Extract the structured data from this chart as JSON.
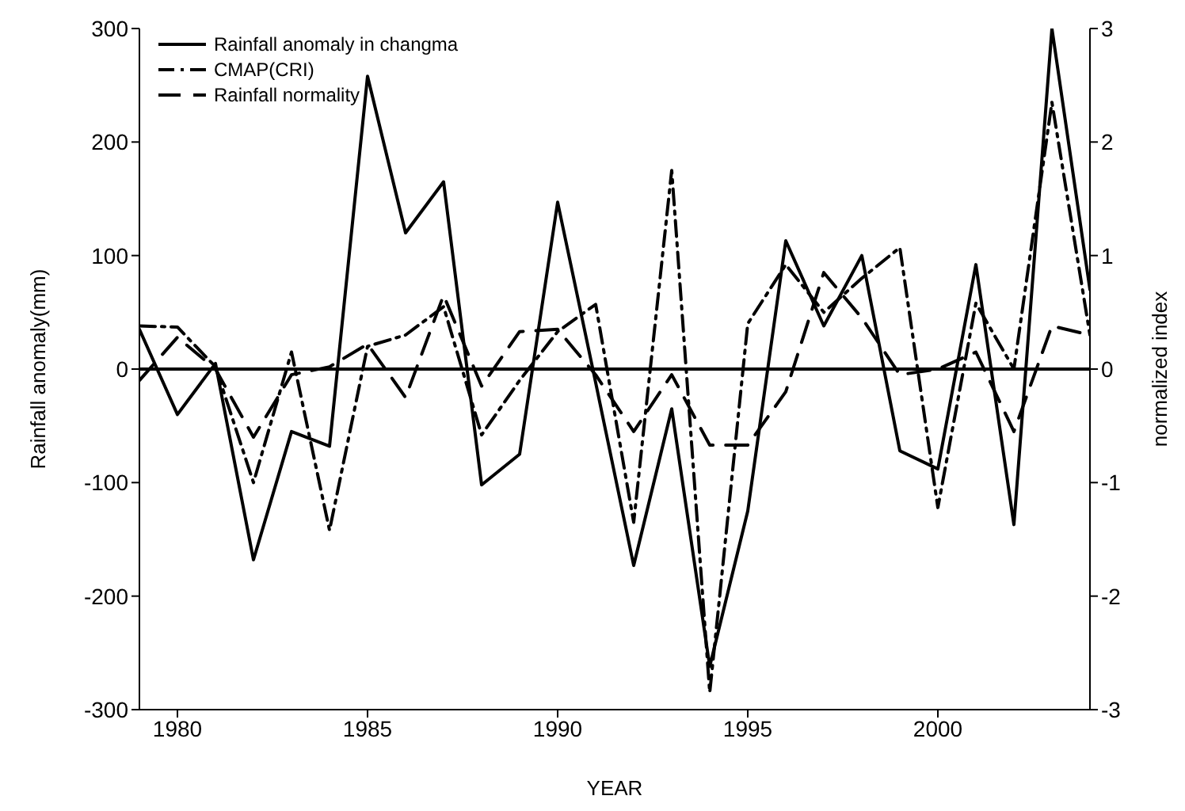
{
  "chart_data": {
    "type": "line",
    "xlabel": "YEAR",
    "ylabel": "Rainfall anomaly(mm)",
    "y2label": "normalized index",
    "x": [
      1979,
      1980,
      1981,
      1982,
      1983,
      1984,
      1985,
      1986,
      1987,
      1988,
      1989,
      1990,
      1991,
      1992,
      1993,
      1994,
      1995,
      1996,
      1997,
      1998,
      1999,
      2000,
      2001,
      2002,
      2003,
      2004
    ],
    "series": [
      {
        "name": "Rainfall anomaly in changma",
        "color": "#000000",
        "line_style": "solid",
        "values": [
          35,
          -40,
          5,
          -168,
          -55,
          -68,
          258,
          120,
          165,
          -102,
          -75,
          147,
          -12,
          -173,
          -35,
          -262,
          -125,
          113,
          38,
          100,
          -72,
          -88,
          92,
          -137,
          300,
          70
        ]
      },
      {
        "name": "CMAP(CRI)",
        "color": "#000000",
        "line_style": "dashdot",
        "axis": "y2",
        "values": [
          0.38,
          0.37,
          0.02,
          -1.0,
          0.15,
          -1.42,
          0.2,
          0.3,
          0.55,
          -0.58,
          -0.1,
          0.33,
          0.57,
          -1.35,
          1.75,
          -2.85,
          0.4,
          0.92,
          0.5,
          0.8,
          1.07,
          -1.22,
          0.58,
          0.0,
          2.35,
          0.3
        ]
      },
      {
        "name": "Rainfall normality",
        "color": "#000000",
        "line_style": "dashed",
        "axis": "y2",
        "values": [
          -0.1,
          0.28,
          0.0,
          -0.6,
          -0.05,
          0.02,
          0.22,
          -0.25,
          0.65,
          -0.15,
          0.33,
          0.35,
          -0.05,
          -0.55,
          -0.05,
          -0.67,
          -0.67,
          -0.2,
          0.85,
          0.45,
          -0.05,
          0.0,
          0.15,
          -0.55,
          0.38,
          0.3
        ]
      }
    ],
    "xlim": [
      1979,
      2004
    ],
    "xticks": [
      1980,
      1985,
      1990,
      1995,
      2000
    ],
    "ylim": [
      -300,
      300
    ],
    "yticks": [
      -300,
      -200,
      -100,
      0,
      100,
      200,
      300
    ],
    "y2lim": [
      -3,
      3
    ],
    "y2ticks": [
      -3,
      -2,
      -1,
      0,
      1,
      2,
      3
    ],
    "ref_lines": [
      {
        "axis": "y",
        "value": 0,
        "color": "#000000"
      }
    ],
    "legend": "top left",
    "grid": false,
    "marker": "none"
  }
}
